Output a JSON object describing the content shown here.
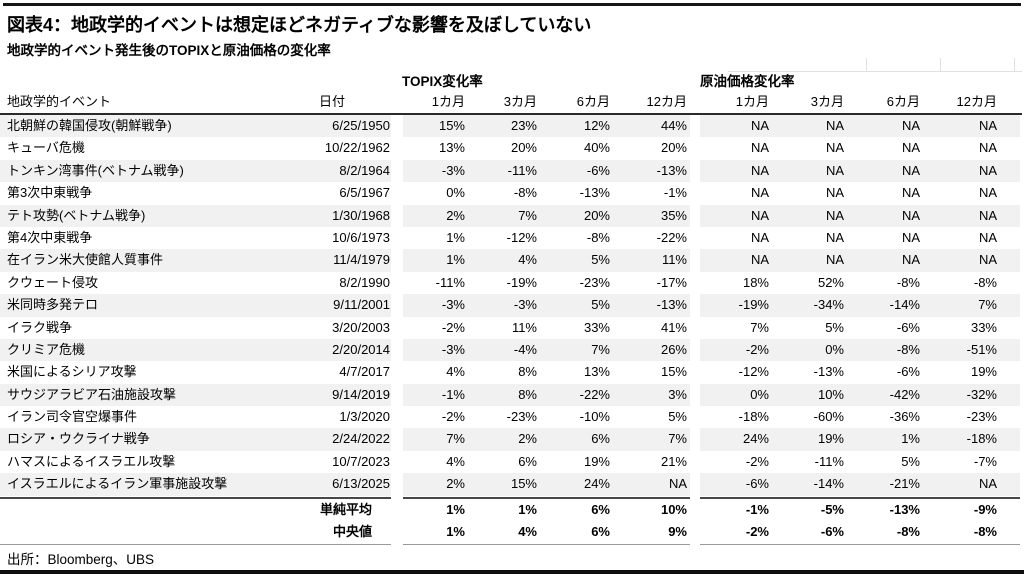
{
  "chart_data": {
    "type": "table",
    "title": "図表4：地政学的イベントは想定ほどネガティブな影響を及ぼしていない",
    "subtitle": "地政学的イベント発生後のTOPIXと原油価格の変化率",
    "source": "出所：Bloomberg、UBS",
    "columns": {
      "event": "地政学的イベント",
      "date": "日付",
      "topix_group": "TOPIX変化率",
      "oil_group": "原油価格変化率",
      "periods": [
        "1カ月",
        "3カ月",
        "6カ月",
        "12カ月"
      ]
    },
    "rows": [
      {
        "event": "北朝鮮の韓国侵攻(朝鮮戦争)",
        "date": "6/25/1950",
        "topix": [
          "15%",
          "23%",
          "12%",
          "44%"
        ],
        "oil": [
          "NA",
          "NA",
          "NA",
          "NA"
        ]
      },
      {
        "event": "キューバ危機",
        "date": "10/22/1962",
        "topix": [
          "13%",
          "20%",
          "40%",
          "20%"
        ],
        "oil": [
          "NA",
          "NA",
          "NA",
          "NA"
        ]
      },
      {
        "event": "トンキン湾事件(ベトナム戦争)",
        "date": "8/2/1964",
        "topix": [
          "-3%",
          "-11%",
          "-6%",
          "-13%"
        ],
        "oil": [
          "NA",
          "NA",
          "NA",
          "NA"
        ]
      },
      {
        "event": "第3次中東戦争",
        "date": "6/5/1967",
        "topix": [
          "0%",
          "-8%",
          "-13%",
          "-1%"
        ],
        "oil": [
          "NA",
          "NA",
          "NA",
          "NA"
        ]
      },
      {
        "event": "テト攻勢(ベトナム戦争)",
        "date": "1/30/1968",
        "topix": [
          "2%",
          "7%",
          "20%",
          "35%"
        ],
        "oil": [
          "NA",
          "NA",
          "NA",
          "NA"
        ]
      },
      {
        "event": "第4次中東戦争",
        "date": "10/6/1973",
        "topix": [
          "1%",
          "-12%",
          "-8%",
          "-22%"
        ],
        "oil": [
          "NA",
          "NA",
          "NA",
          "NA"
        ]
      },
      {
        "event": "在イラン米大使館人質事件",
        "date": "11/4/1979",
        "topix": [
          "1%",
          "4%",
          "5%",
          "11%"
        ],
        "oil": [
          "NA",
          "NA",
          "NA",
          "NA"
        ]
      },
      {
        "event": "クウェート侵攻",
        "date": "8/2/1990",
        "topix": [
          "-11%",
          "-19%",
          "-23%",
          "-17%"
        ],
        "oil": [
          "18%",
          "52%",
          "-8%",
          "-8%"
        ]
      },
      {
        "event": "米同時多発テロ",
        "date": "9/11/2001",
        "topix": [
          "-3%",
          "-3%",
          "5%",
          "-13%"
        ],
        "oil": [
          "-19%",
          "-34%",
          "-14%",
          "7%"
        ]
      },
      {
        "event": "イラク戦争",
        "date": "3/20/2003",
        "topix": [
          "-2%",
          "11%",
          "33%",
          "41%"
        ],
        "oil": [
          "7%",
          "5%",
          "-6%",
          "33%"
        ]
      },
      {
        "event": "クリミア危機",
        "date": "2/20/2014",
        "topix": [
          "-3%",
          "-4%",
          "7%",
          "26%"
        ],
        "oil": [
          "-2%",
          "0%",
          "-8%",
          "-51%"
        ]
      },
      {
        "event": "米国によるシリア攻撃",
        "date": "4/7/2017",
        "topix": [
          "4%",
          "8%",
          "13%",
          "15%"
        ],
        "oil": [
          "-12%",
          "-13%",
          "-6%",
          "19%"
        ]
      },
      {
        "event": "サウジアラビア石油施設攻撃",
        "date": "9/14/2019",
        "topix": [
          "-1%",
          "8%",
          "-22%",
          "3%"
        ],
        "oil": [
          "0%",
          "10%",
          "-42%",
          "-32%"
        ]
      },
      {
        "event": "イラン司令官空爆事件",
        "date": "1/3/2020",
        "topix": [
          "-2%",
          "-23%",
          "-10%",
          "5%"
        ],
        "oil": [
          "-18%",
          "-60%",
          "-36%",
          "-23%"
        ]
      },
      {
        "event": "ロシア・ウクライナ戦争",
        "date": "2/24/2022",
        "topix": [
          "7%",
          "2%",
          "6%",
          "7%"
        ],
        "oil": [
          "24%",
          "19%",
          "1%",
          "-18%"
        ]
      },
      {
        "event": "ハマスによるイスラエル攻撃",
        "date": "10/7/2023",
        "topix": [
          "4%",
          "6%",
          "19%",
          "21%"
        ],
        "oil": [
          "-2%",
          "-11%",
          "5%",
          "-7%"
        ]
      },
      {
        "event": "イスラエルによるイラン軍事施設攻撃",
        "date": "6/13/2025",
        "topix": [
          "2%",
          "15%",
          "24%",
          "NA"
        ],
        "oil": [
          "-6%",
          "-14%",
          "-21%",
          "NA"
        ]
      }
    ],
    "summary": [
      {
        "label": "単純平均",
        "topix": [
          "1%",
          "1%",
          "6%",
          "10%"
        ],
        "oil": [
          "-1%",
          "-5%",
          "-13%",
          "-9%"
        ]
      },
      {
        "label": "中央値",
        "topix": [
          "1%",
          "4%",
          "6%",
          "9%"
        ],
        "oil": [
          "-2%",
          "-6%",
          "-8%",
          "-8%"
        ]
      }
    ],
    "layout_hints": {
      "row_stripe_color": "#f1f1f1",
      "rule_color": "#161616",
      "stripe_pattern": "odd-rows-shaded"
    }
  }
}
